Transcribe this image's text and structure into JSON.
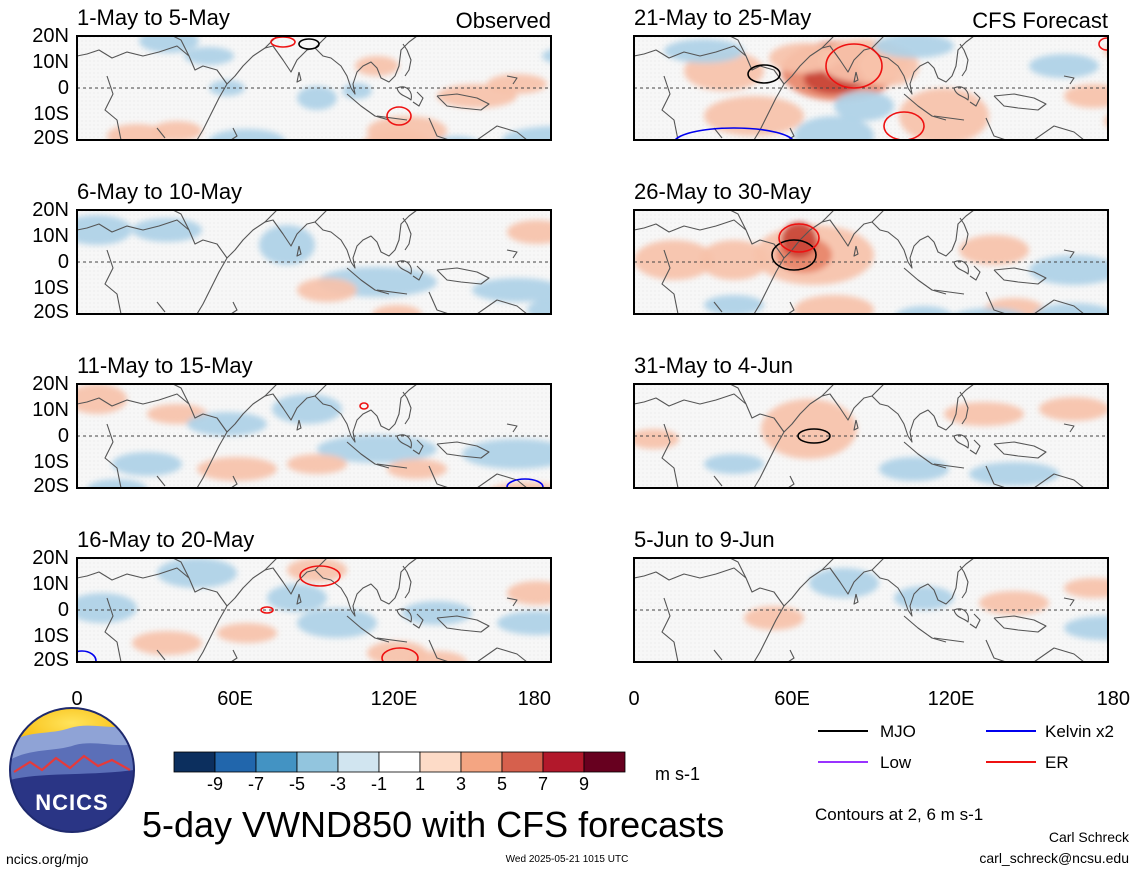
{
  "lat_ticks": [
    "20N",
    "10N",
    "0",
    "10S",
    "20S"
  ],
  "lon_ticks": [
    "0",
    "60E",
    "120E",
    "180"
  ],
  "panels": [
    {
      "title": "1-May to 5-May",
      "tag": "Observed",
      "anoms": [
        [
          92,
          5,
          30,
          12,
          -1
        ],
        [
          132,
          20,
          25,
          9,
          -1
        ],
        [
          150,
          52,
          18,
          8,
          -1
        ],
        [
          170,
          105,
          38,
          12,
          -1
        ],
        [
          300,
          30,
          22,
          10,
          1
        ],
        [
          240,
          62,
          20,
          12,
          -1
        ],
        [
          280,
          55,
          15,
          8,
          -1
        ],
        [
          320,
          115,
          38,
          22,
          1
        ],
        [
          330,
          95,
          40,
          15,
          1
        ],
        [
          400,
          60,
          40,
          12,
          1
        ],
        [
          440,
          48,
          30,
          10,
          1
        ],
        [
          380,
          110,
          24,
          10,
          -1
        ],
        [
          480,
          104,
          55,
          14,
          -1
        ],
        [
          520,
          80,
          40,
          10,
          -1
        ],
        [
          200,
          125,
          35,
          15,
          -1
        ],
        [
          260,
          125,
          40,
          12,
          -1
        ],
        [
          60,
          100,
          30,
          12,
          1
        ],
        [
          100,
          95,
          25,
          10,
          1
        ],
        [
          500,
          20,
          35,
          10,
          -1
        ]
      ],
      "contours": [
        [
          232,
          8,
          10,
          5,
          "mjo"
        ],
        [
          206,
          6,
          12,
          5,
          "er"
        ],
        [
          322,
          80,
          12,
          9,
          "er"
        ],
        [
          525,
          106,
          22,
          4,
          "kelvin"
        ]
      ]
    },
    {
      "title": "21-May to 25-May",
      "tag": "CFS Forecast",
      "anoms": [
        [
          205,
          35,
          58,
          30,
          3
        ],
        [
          200,
          43,
          30,
          15,
          5
        ],
        [
          230,
          25,
          45,
          22,
          1
        ],
        [
          170,
          22,
          35,
          15,
          1
        ],
        [
          255,
          30,
          30,
          20,
          1
        ],
        [
          310,
          80,
          45,
          28,
          1
        ],
        [
          200,
          100,
          40,
          20,
          -1
        ],
        [
          120,
          80,
          50,
          20,
          1
        ],
        [
          90,
          35,
          40,
          20,
          1
        ],
        [
          280,
          10,
          40,
          12,
          -1
        ],
        [
          230,
          70,
          30,
          15,
          -1
        ],
        [
          430,
          30,
          35,
          12,
          -1
        ],
        [
          460,
          60,
          30,
          12,
          1
        ],
        [
          500,
          85,
          30,
          12,
          1
        ],
        [
          500,
          15,
          30,
          10,
          1
        ],
        [
          70,
          15,
          40,
          12,
          -1
        ]
      ],
      "contours": [
        [
          220,
          30,
          28,
          22,
          "er"
        ],
        [
          270,
          90,
          20,
          14,
          "er"
        ],
        [
          130,
          38,
          16,
          9,
          "mjo"
        ],
        [
          100,
          107,
          60,
          15,
          "kelvin"
        ],
        [
          473,
          8,
          8,
          6,
          "er"
        ]
      ]
    },
    {
      "title": "6-May to 10-May",
      "tag": "",
      "anoms": [
        [
          20,
          20,
          35,
          15,
          -1
        ],
        [
          90,
          20,
          35,
          12,
          -1
        ],
        [
          210,
          35,
          28,
          20,
          -1
        ],
        [
          300,
          72,
          60,
          15,
          -1
        ],
        [
          440,
          80,
          45,
          12,
          -1
        ],
        [
          500,
          100,
          50,
          15,
          -1
        ],
        [
          250,
          80,
          30,
          12,
          1
        ],
        [
          320,
          105,
          25,
          10,
          1
        ],
        [
          460,
          22,
          30,
          12,
          1
        ],
        [
          540,
          30,
          15,
          12,
          1
        ]
      ],
      "contours": [
        [
          475,
          112,
          10,
          3,
          "mjo"
        ]
      ]
    },
    {
      "title": "26-May to 30-May",
      "tag": "",
      "anoms": [
        [
          180,
          45,
          60,
          30,
          1
        ],
        [
          170,
          45,
          28,
          18,
          3
        ],
        [
          165,
          30,
          18,
          18,
          5
        ],
        [
          40,
          50,
          40,
          20,
          1
        ],
        [
          100,
          50,
          35,
          20,
          1
        ],
        [
          360,
          40,
          35,
          15,
          1
        ],
        [
          380,
          100,
          30,
          12,
          1
        ],
        [
          440,
          105,
          40,
          12,
          -1
        ],
        [
          355,
          110,
          40,
          12,
          -1
        ],
        [
          290,
          108,
          30,
          12,
          -1
        ],
        [
          200,
          100,
          40,
          15,
          1
        ],
        [
          440,
          60,
          45,
          15,
          -1
        ],
        [
          100,
          95,
          30,
          10,
          -1
        ]
      ],
      "contours": [
        [
          160,
          45,
          22,
          15,
          "mjo"
        ],
        [
          165,
          28,
          20,
          14,
          "er"
        ]
      ]
    },
    {
      "title": "11-May to 15-May",
      "tag": "",
      "anoms": [
        [
          20,
          15,
          30,
          15,
          1
        ],
        [
          100,
          30,
          30,
          10,
          1
        ],
        [
          150,
          40,
          40,
          12,
          -1
        ],
        [
          230,
          25,
          35,
          15,
          -1
        ],
        [
          300,
          65,
          60,
          14,
          -1
        ],
        [
          440,
          70,
          55,
          15,
          -1
        ],
        [
          160,
          85,
          40,
          12,
          1
        ],
        [
          240,
          80,
          30,
          10,
          1
        ],
        [
          340,
          85,
          30,
          10,
          1
        ],
        [
          450,
          110,
          40,
          12,
          1
        ],
        [
          70,
          80,
          35,
          12,
          -1
        ],
        [
          510,
          90,
          30,
          10,
          -1
        ],
        [
          40,
          105,
          30,
          10,
          -1
        ]
      ],
      "contours": [
        [
          287,
          22,
          4,
          3,
          "er"
        ],
        [
          448,
          103,
          18,
          8,
          "kelvin"
        ]
      ]
    },
    {
      "title": "31-May to 4-Jun",
      "tag": "",
      "anoms": [
        [
          175,
          45,
          48,
          30,
          1
        ],
        [
          20,
          55,
          25,
          10,
          1
        ],
        [
          350,
          30,
          40,
          12,
          1
        ],
        [
          440,
          25,
          35,
          12,
          1
        ],
        [
          280,
          85,
          35,
          12,
          -1
        ],
        [
          380,
          90,
          45,
          12,
          -1
        ],
        [
          100,
          80,
          30,
          10,
          -1
        ],
        [
          520,
          60,
          30,
          12,
          -1
        ]
      ],
      "contours": [
        [
          180,
          52,
          16,
          7,
          "mjo"
        ]
      ]
    },
    {
      "title": "16-May to 20-May",
      "tag": "",
      "anoms": [
        [
          25,
          50,
          35,
          15,
          -1
        ],
        [
          120,
          15,
          40,
          15,
          -1
        ],
        [
          220,
          40,
          30,
          14,
          -1
        ],
        [
          260,
          65,
          40,
          15,
          -1
        ],
        [
          360,
          55,
          35,
          12,
          -1
        ],
        [
          460,
          65,
          40,
          12,
          -1
        ],
        [
          240,
          12,
          30,
          12,
          1
        ],
        [
          320,
          95,
          30,
          12,
          1
        ],
        [
          460,
          35,
          30,
          12,
          1
        ],
        [
          360,
          105,
          30,
          12,
          1
        ],
        [
          90,
          85,
          35,
          12,
          1
        ],
        [
          170,
          75,
          30,
          10,
          1
        ],
        [
          510,
          20,
          20,
          10,
          1
        ]
      ],
      "contours": [
        [
          243,
          18,
          20,
          10,
          "er"
        ],
        [
          190,
          52,
          6,
          3,
          "er"
        ],
        [
          323,
          100,
          18,
          10,
          "er"
        ],
        [
          5,
          103,
          14,
          10,
          "kelvin"
        ]
      ]
    },
    {
      "title": "5-Jun to 9-Jun",
      "tag": "",
      "anoms": [
        [
          210,
          25,
          35,
          15,
          -1
        ],
        [
          290,
          40,
          30,
          12,
          -1
        ],
        [
          470,
          70,
          40,
          12,
          -1
        ],
        [
          140,
          60,
          30,
          12,
          1
        ],
        [
          380,
          45,
          35,
          12,
          1
        ],
        [
          460,
          30,
          30,
          10,
          1
        ]
      ],
      "contours": []
    }
  ],
  "colorbar": {
    "colors": [
      "#0c2f5e",
      "#2166ac",
      "#4393c3",
      "#92c5de",
      "#d1e5f0",
      "#ffffff",
      "#fddbc7",
      "#f4a582",
      "#d6604d",
      "#b2182b",
      "#67001f"
    ],
    "labels": [
      "-9",
      "-7",
      "-5",
      "-3",
      "-1",
      "1",
      "3",
      "5",
      "7",
      "9"
    ],
    "unit": "m s-1"
  },
  "legend": {
    "mjo": {
      "label": "MJO",
      "color": "#000000"
    },
    "kelvin": {
      "label": "Kelvin x2",
      "color": "#0000ee"
    },
    "low": {
      "label": "Low",
      "color": "#9933ff"
    },
    "er": {
      "label": "ER",
      "color": "#ee1111"
    }
  },
  "contour_note": "Contours at 2, 6 m s-1",
  "main_title": "5-day VWND850 with CFS forecasts",
  "logo_text": "NCICS",
  "url_left": "ncics.org/mjo",
  "timestamp": "Wed 2025-05-21 1015 UTC",
  "author": "Carl Schreck",
  "email": "carl_schreck@ncsu.edu"
}
